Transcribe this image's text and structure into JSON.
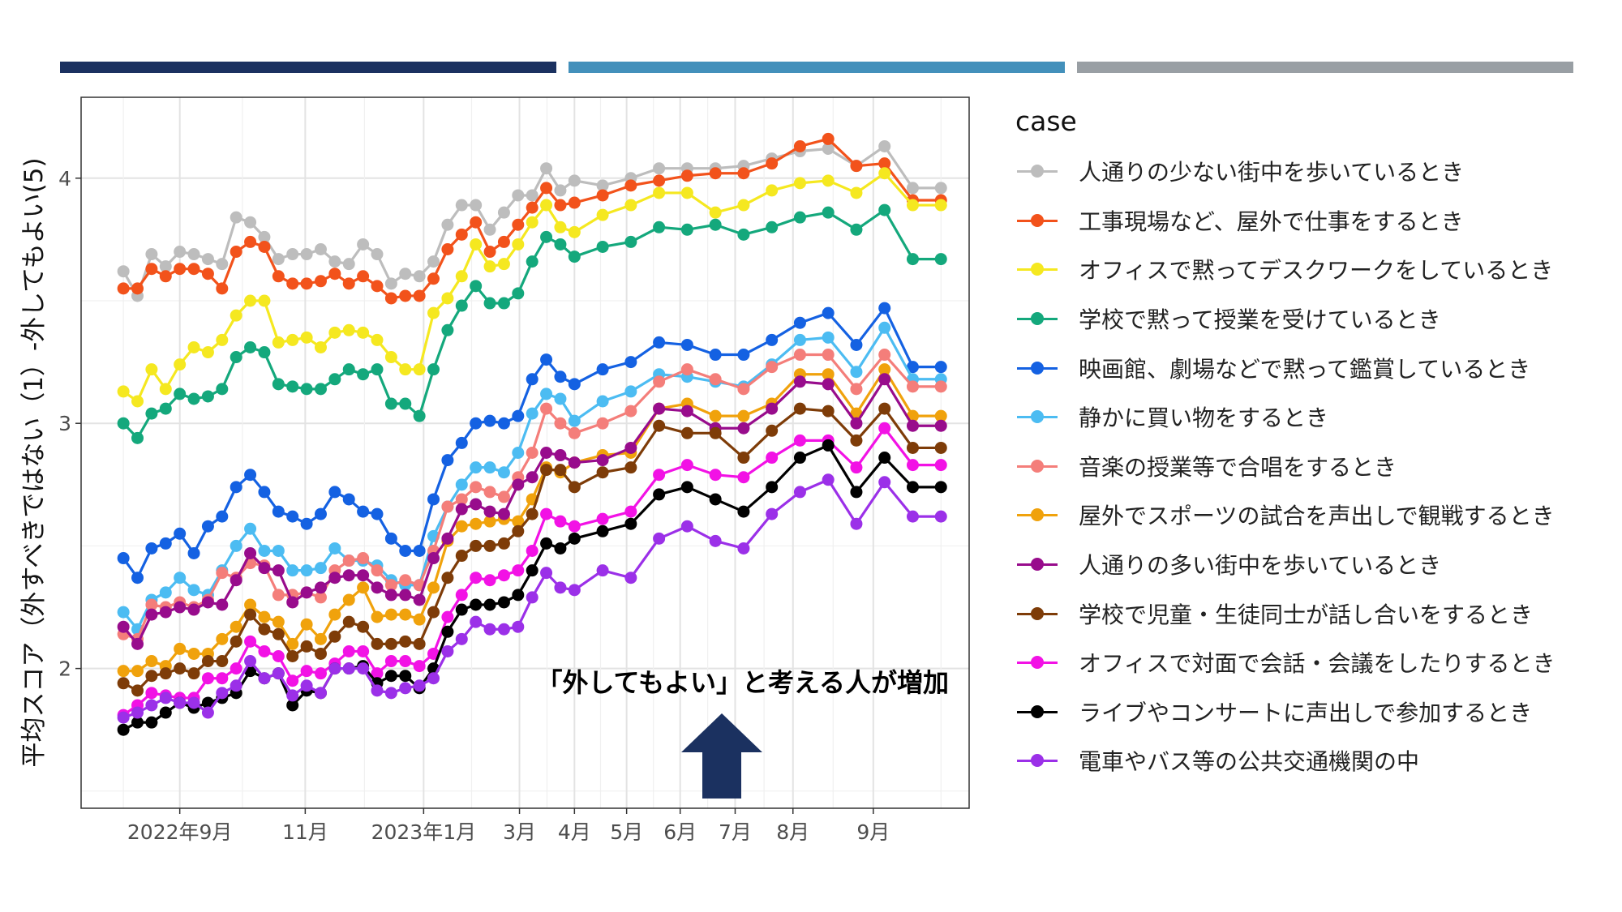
{
  "header_bars": [
    {
      "color": "#1b3160"
    },
    {
      "color": "#4390bb"
    },
    {
      "color": "#999fa4"
    }
  ],
  "chart_data": {
    "type": "line",
    "ylabel": "平均スコア（外すべきではない（1）-外してもよい(5)",
    "xlabel": "",
    "ylim": [
      1.43,
      4.33
    ],
    "y_ticks": [
      2,
      3,
      4
    ],
    "x_ticks": [
      {
        "label": "2022年9月",
        "x": 4
      },
      {
        "label": "11月",
        "x": 12.9
      },
      {
        "label": "2023年1月",
        "x": 21.3
      },
      {
        "label": "3月",
        "x": 28.1
      },
      {
        "label": "4月",
        "x": 32.0
      },
      {
        "label": "5月",
        "x": 35.7
      },
      {
        "label": "6月",
        "x": 39.5
      },
      {
        "label": "7月",
        "x": 43.4
      },
      {
        "label": "8月",
        "x": 47.5
      },
      {
        "label": "9月",
        "x": 53.2
      }
    ],
    "legend_title": "case",
    "legend_position": "right",
    "grid": true,
    "annotation": {
      "text": "「外してもよい」と考える人が増加",
      "arrow": "up",
      "arrow_color": "#1b3160"
    },
    "x": [
      0,
      1,
      2,
      3,
      4,
      5,
      6,
      7,
      8,
      9,
      10,
      11,
      12,
      13,
      14,
      15,
      16,
      17,
      18,
      19,
      20,
      21,
      22,
      23,
      24,
      25,
      26,
      27,
      28,
      29,
      30,
      31,
      32,
      34,
      36,
      38,
      40,
      42,
      44,
      46,
      48,
      50,
      52,
      54,
      56,
      58
    ],
    "series": [
      {
        "name": "人通りの少ない街中を歩いているとき",
        "color": "#bdbdbd",
        "values": [
          3.62,
          3.52,
          3.69,
          3.64,
          3.7,
          3.69,
          3.67,
          3.65,
          3.84,
          3.82,
          3.76,
          3.67,
          3.69,
          3.69,
          3.71,
          3.66,
          3.65,
          3.73,
          3.69,
          3.57,
          3.61,
          3.6,
          3.66,
          3.81,
          3.89,
          3.89,
          3.79,
          3.86,
          3.93,
          3.93,
          4.04,
          3.95,
          3.99,
          3.97,
          4.0,
          4.04,
          4.04,
          4.04,
          4.05,
          4.08,
          4.11,
          4.12,
          4.05,
          4.13,
          3.96,
          3.96
        ]
      },
      {
        "name": "工事現場など、屋外で仕事をするとき",
        "color": "#f2521b",
        "values": [
          3.55,
          3.55,
          3.63,
          3.6,
          3.63,
          3.63,
          3.61,
          3.55,
          3.7,
          3.74,
          3.72,
          3.6,
          3.57,
          3.57,
          3.58,
          3.61,
          3.57,
          3.6,
          3.56,
          3.51,
          3.52,
          3.52,
          3.59,
          3.71,
          3.77,
          3.82,
          3.7,
          3.74,
          3.81,
          3.88,
          3.96,
          3.89,
          3.9,
          3.93,
          3.97,
          3.99,
          4.01,
          4.02,
          4.02,
          4.06,
          4.13,
          4.16,
          4.05,
          4.06,
          3.91,
          3.91
        ]
      },
      {
        "name": "オフィスで黙ってデスクワークをしているとき",
        "color": "#f5e820",
        "values": [
          3.13,
          3.09,
          3.22,
          3.14,
          3.24,
          3.31,
          3.29,
          3.34,
          3.44,
          3.5,
          3.5,
          3.33,
          3.34,
          3.35,
          3.31,
          3.37,
          3.38,
          3.37,
          3.34,
          3.27,
          3.22,
          3.22,
          3.45,
          3.51,
          3.6,
          3.73,
          3.64,
          3.65,
          3.73,
          3.82,
          3.89,
          3.8,
          3.78,
          3.85,
          3.89,
          3.94,
          3.94,
          3.86,
          3.89,
          3.95,
          3.98,
          3.99,
          3.94,
          4.02,
          3.89,
          3.89
        ]
      },
      {
        "name": "学校で黙って授業を受けているとき",
        "color": "#14a87c",
        "values": [
          3.0,
          2.94,
          3.04,
          3.06,
          3.12,
          3.1,
          3.11,
          3.14,
          3.27,
          3.31,
          3.29,
          3.16,
          3.15,
          3.14,
          3.14,
          3.18,
          3.22,
          3.2,
          3.22,
          3.08,
          3.08,
          3.03,
          3.22,
          3.38,
          3.48,
          3.56,
          3.49,
          3.49,
          3.53,
          3.66,
          3.76,
          3.73,
          3.68,
          3.72,
          3.74,
          3.8,
          3.79,
          3.81,
          3.77,
          3.8,
          3.84,
          3.86,
          3.79,
          3.87,
          3.67,
          3.67
        ]
      },
      {
        "name": "映画館、劇場などで黙って鑑賞しているとき",
        "color": "#1461e2",
        "values": [
          2.45,
          2.37,
          2.49,
          2.51,
          2.55,
          2.47,
          2.58,
          2.62,
          2.74,
          2.79,
          2.72,
          2.64,
          2.62,
          2.59,
          2.63,
          2.72,
          2.69,
          2.64,
          2.63,
          2.53,
          2.48,
          2.48,
          2.69,
          2.85,
          2.92,
          3.0,
          3.01,
          3.0,
          3.03,
          3.18,
          3.26,
          3.19,
          3.16,
          3.22,
          3.25,
          3.33,
          3.32,
          3.28,
          3.28,
          3.34,
          3.41,
          3.45,
          3.32,
          3.47,
          3.23,
          3.23
        ]
      },
      {
        "name": "静かに買い物をするとき",
        "color": "#4cbcf2",
        "values": [
          2.23,
          2.16,
          2.28,
          2.31,
          2.37,
          2.32,
          2.3,
          2.4,
          2.5,
          2.57,
          2.48,
          2.48,
          2.4,
          2.4,
          2.41,
          2.49,
          2.44,
          2.44,
          2.42,
          2.36,
          2.34,
          2.34,
          2.54,
          2.66,
          2.75,
          2.82,
          2.82,
          2.8,
          2.88,
          3.04,
          3.12,
          3.1,
          3.01,
          3.09,
          3.13,
          3.2,
          3.19,
          3.17,
          3.15,
          3.24,
          3.34,
          3.35,
          3.21,
          3.39,
          3.18,
          3.18
        ]
      },
      {
        "name": "音楽の授業等で合唱をするとき",
        "color": "#f47e7a",
        "values": [
          2.14,
          2.12,
          2.26,
          2.25,
          2.27,
          2.25,
          2.28,
          2.39,
          2.37,
          2.43,
          2.42,
          2.3,
          2.3,
          2.31,
          2.29,
          2.4,
          2.44,
          2.45,
          2.4,
          2.34,
          2.36,
          2.34,
          2.48,
          2.66,
          2.69,
          2.74,
          2.72,
          2.7,
          2.78,
          2.88,
          3.06,
          3.0,
          2.96,
          3.0,
          3.05,
          3.17,
          3.22,
          3.18,
          3.14,
          3.23,
          3.28,
          3.28,
          3.14,
          3.28,
          3.15,
          3.15
        ]
      },
      {
        "name": "屋外でスポーツの試合を声出しで観戦するとき",
        "color": "#f0a20c",
        "values": [
          1.99,
          1.99,
          2.03,
          2.01,
          2.08,
          2.06,
          2.06,
          2.12,
          2.17,
          2.26,
          2.21,
          2.19,
          2.1,
          2.18,
          2.12,
          2.22,
          2.28,
          2.33,
          2.21,
          2.22,
          2.22,
          2.2,
          2.33,
          2.52,
          2.58,
          2.59,
          2.6,
          2.61,
          2.6,
          2.69,
          2.82,
          2.8,
          2.84,
          2.87,
          2.88,
          3.06,
          3.08,
          3.03,
          3.03,
          3.08,
          3.2,
          3.2,
          3.04,
          3.22,
          3.03,
          3.03
        ]
      },
      {
        "name": "人通りの多い街中を歩いているとき",
        "color": "#980c8c",
        "values": [
          2.17,
          2.1,
          2.22,
          2.23,
          2.25,
          2.24,
          2.27,
          2.26,
          2.36,
          2.47,
          2.41,
          2.4,
          2.27,
          2.31,
          2.33,
          2.37,
          2.38,
          2.38,
          2.33,
          2.3,
          2.3,
          2.28,
          2.45,
          2.53,
          2.65,
          2.67,
          2.64,
          2.63,
          2.75,
          2.78,
          2.88,
          2.87,
          2.84,
          2.85,
          2.9,
          3.06,
          3.05,
          2.98,
          2.98,
          3.06,
          3.17,
          3.16,
          3.0,
          3.18,
          2.99,
          2.99
        ]
      },
      {
        "name": "学校で児童・生徒同士が話し合いをするとき",
        "color": "#7e3c08",
        "values": [
          1.94,
          1.91,
          1.97,
          1.98,
          2.0,
          1.98,
          2.03,
          2.03,
          2.11,
          2.22,
          2.16,
          2.14,
          2.05,
          2.09,
          2.06,
          2.13,
          2.19,
          2.17,
          2.1,
          2.1,
          2.11,
          2.1,
          2.23,
          2.37,
          2.46,
          2.5,
          2.5,
          2.51,
          2.56,
          2.63,
          2.81,
          2.81,
          2.74,
          2.8,
          2.82,
          2.99,
          2.96,
          2.96,
          2.86,
          2.97,
          3.06,
          3.05,
          2.93,
          3.06,
          2.9,
          2.9
        ]
      },
      {
        "name": "オフィスで対面で会話・会議をしたりするとき",
        "color": "#f212e5",
        "values": [
          1.81,
          1.85,
          1.9,
          1.89,
          1.88,
          1.88,
          1.96,
          1.96,
          2.0,
          2.11,
          2.07,
          2.05,
          1.95,
          1.99,
          1.98,
          2.02,
          2.07,
          2.07,
          1.98,
          2.03,
          2.03,
          2.01,
          2.06,
          2.21,
          2.3,
          2.37,
          2.36,
          2.38,
          2.4,
          2.48,
          2.63,
          2.6,
          2.58,
          2.61,
          2.64,
          2.79,
          2.83,
          2.79,
          2.78,
          2.86,
          2.93,
          2.93,
          2.82,
          2.98,
          2.83,
          2.83
        ]
      },
      {
        "name": "ライブやコンサートに声出しで参加するとき",
        "color": "#000000",
        "values": [
          1.75,
          1.78,
          1.78,
          1.82,
          1.86,
          1.84,
          1.86,
          1.88,
          1.9,
          1.99,
          1.96,
          1.98,
          1.85,
          1.91,
          1.9,
          2.0,
          2.0,
          2.01,
          1.94,
          1.97,
          1.97,
          1.92,
          2.0,
          2.15,
          2.24,
          2.26,
          2.26,
          2.27,
          2.3,
          2.4,
          2.51,
          2.49,
          2.53,
          2.56,
          2.59,
          2.71,
          2.74,
          2.69,
          2.64,
          2.74,
          2.86,
          2.91,
          2.72,
          2.86,
          2.74,
          2.74
        ]
      },
      {
        "name": "電車やバス等の公共交通機関の中",
        "color": "#9b30e8",
        "values": [
          1.8,
          1.82,
          1.85,
          1.88,
          1.86,
          1.86,
          1.82,
          1.9,
          1.93,
          2.03,
          1.96,
          1.98,
          1.89,
          1.93,
          1.9,
          2.0,
          2.0,
          2.0,
          1.91,
          1.9,
          1.92,
          1.93,
          1.96,
          2.07,
          2.12,
          2.19,
          2.16,
          2.16,
          2.17,
          2.29,
          2.39,
          2.33,
          2.32,
          2.4,
          2.37,
          2.53,
          2.58,
          2.52,
          2.49,
          2.63,
          2.72,
          2.77,
          2.59,
          2.76,
          2.62,
          2.62
        ]
      }
    ]
  }
}
